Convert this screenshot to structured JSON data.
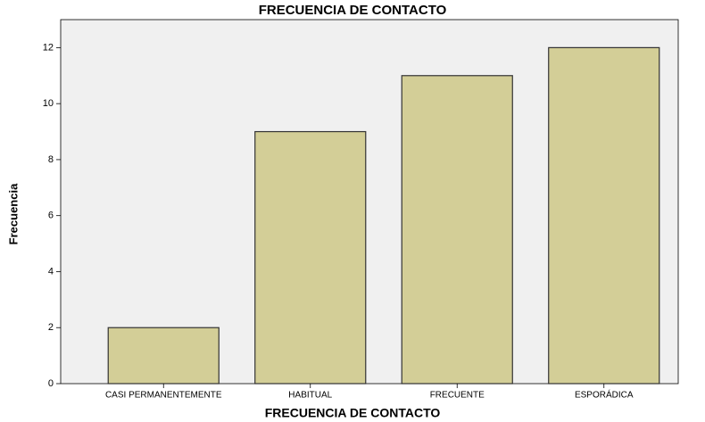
{
  "chart_data": {
    "type": "bar",
    "title": "FRECUENCIA DE CONTACTO",
    "x_label": "FRECUENCIA DE CONTACTO",
    "y_label": "Frecuencia",
    "categories": [
      "CASI PERMANENTEMENTE",
      "HABITUAL",
      "FRECUENTE",
      "ESPORÁDICA"
    ],
    "values": [
      2,
      9,
      11,
      12
    ],
    "color": "#d3ce97",
    "ylim": [
      0,
      13
    ],
    "yticks": [
      0,
      2,
      4,
      6,
      8,
      10,
      12
    ],
    "grid": false
  }
}
